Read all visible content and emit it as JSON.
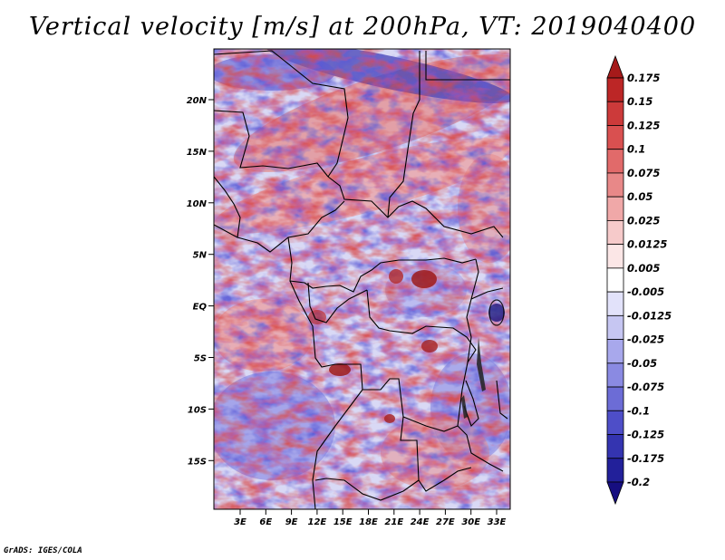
{
  "title": "Vertical velocity [m/s] at 200hPa, VT: 2019040400",
  "credit": "GrADS: IGES/COLA",
  "map": {
    "lat_labels": [
      "20N",
      "15N",
      "10N",
      "5N",
      "EQ",
      "5S",
      "10S",
      "15S"
    ],
    "lon_labels": [
      "3E",
      "6E",
      "9E",
      "12E",
      "15E",
      "18E",
      "21E",
      "24E",
      "27E",
      "30E",
      "33E"
    ]
  },
  "colorbar": {
    "labels": [
      "0.175",
      "0.15",
      "0.125",
      "0.1",
      "0.075",
      "0.05",
      "0.025",
      "0.0125",
      "0.005",
      "-0.005",
      "-0.0125",
      "-0.025",
      "-0.05",
      "-0.075",
      "-0.1",
      "-0.125",
      "-0.175",
      "-0.2"
    ],
    "colors": [
      "#a51a1a",
      "#bc2626",
      "#cc3a3a",
      "#d95050",
      "#e16a6a",
      "#e88888",
      "#f0a8a8",
      "#f6caca",
      "#fbe6e6",
      "#ffffff",
      "#e2e2fa",
      "#c6c6f2",
      "#a8a8ec",
      "#8a8ae2",
      "#6c6cd6",
      "#4e4ec8",
      "#3434b0",
      "#22209a",
      "#160e80"
    ]
  }
}
